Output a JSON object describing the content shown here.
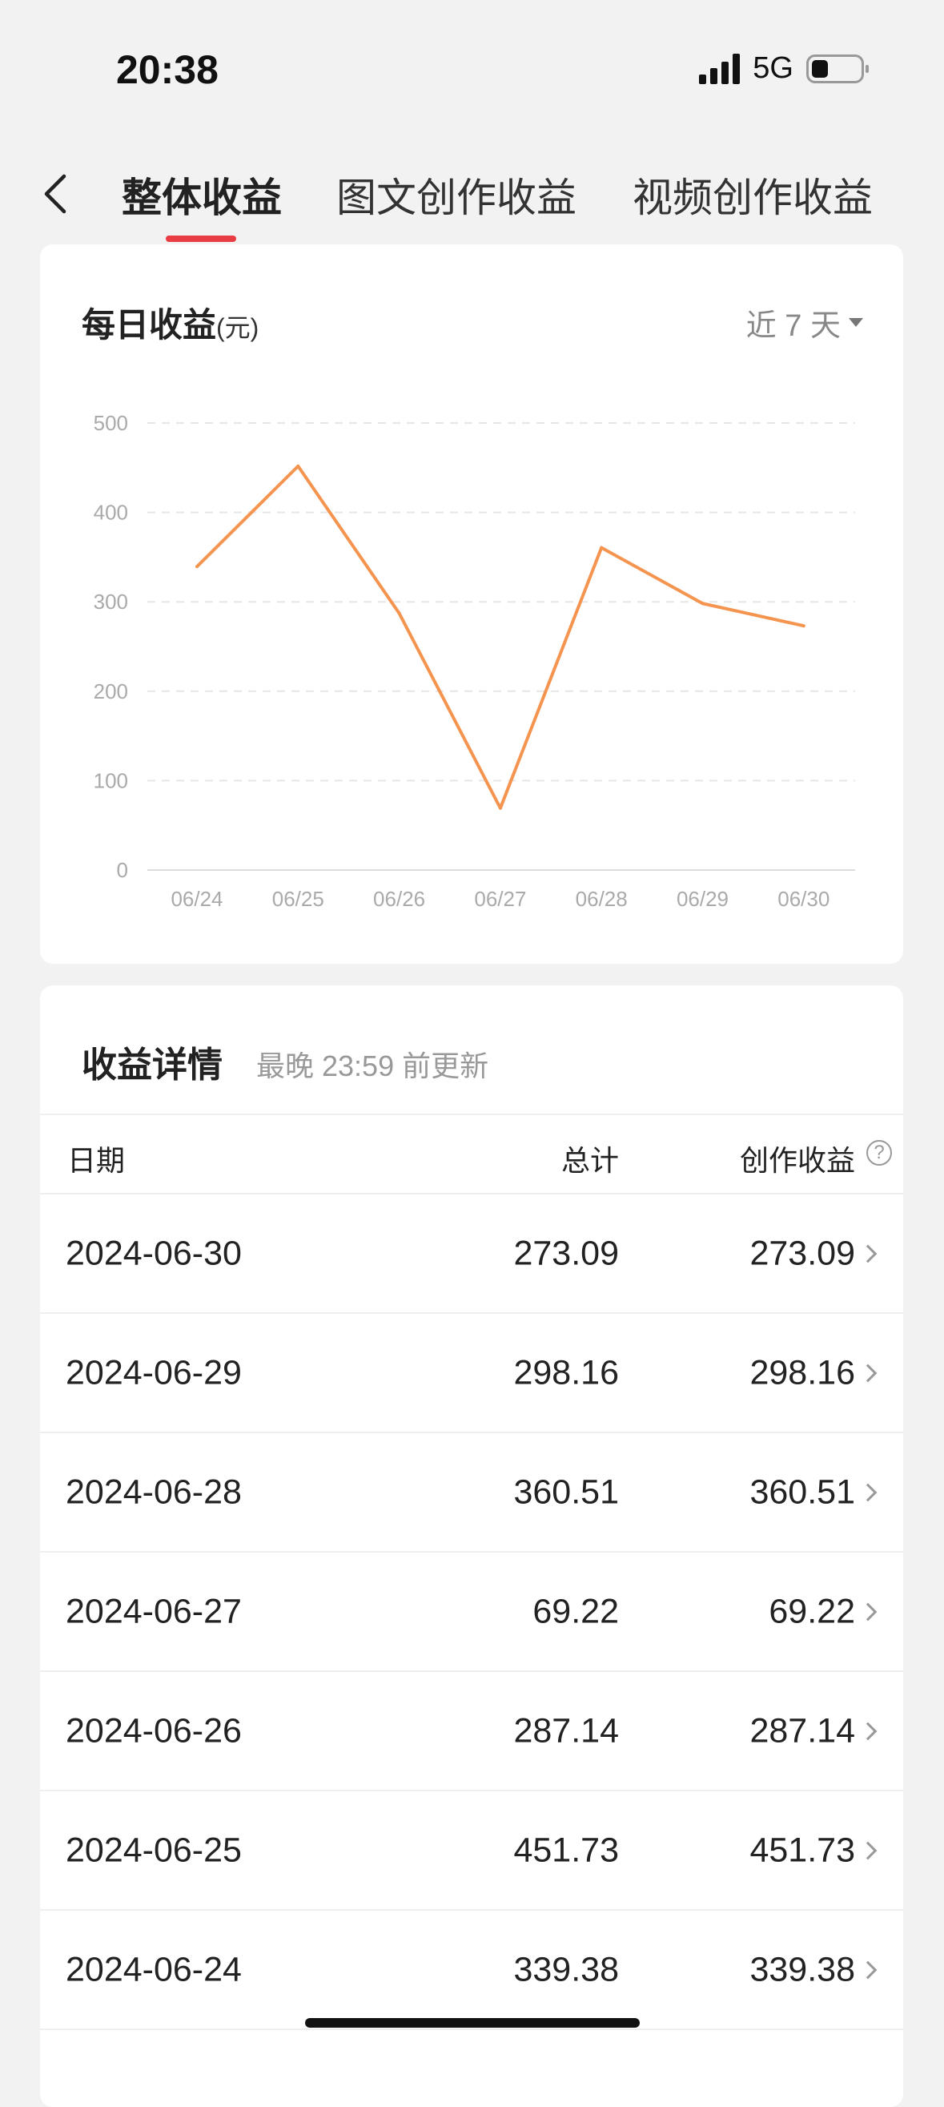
{
  "status_bar": {
    "time": "20:38",
    "network": "5G",
    "battery_level": 0.25
  },
  "tabs": [
    {
      "label": "整体收益",
      "active": true
    },
    {
      "label": "图文创作收益",
      "active": false
    },
    {
      "label": "视频创作收益",
      "active": false
    }
  ],
  "daily_card": {
    "title": "每日收益",
    "unit": "(元)",
    "range_label": "近 7 天"
  },
  "chart_data": {
    "type": "line",
    "categories": [
      "06/24",
      "06/25",
      "06/26",
      "06/27",
      "06/28",
      "06/29",
      "06/30"
    ],
    "values": [
      339.38,
      451.73,
      287.14,
      69.22,
      360.51,
      298.16,
      273.09
    ],
    "yticks": [
      "0",
      "100",
      "200",
      "300",
      "400",
      "500"
    ],
    "ylim": [
      0,
      500
    ],
    "grid": true,
    "line_color": "#f5944f"
  },
  "detail_card": {
    "title": "收益详情",
    "subtitle": "最晚 23:59 前更新",
    "columns": {
      "date": "日期",
      "total": "总计",
      "creation": "创作收益"
    },
    "help_icon": "?",
    "rows": [
      {
        "date": "2024-06-30",
        "total": "273.09",
        "creation": "273.09"
      },
      {
        "date": "2024-06-29",
        "total": "298.16",
        "creation": "298.16"
      },
      {
        "date": "2024-06-28",
        "total": "360.51",
        "creation": "360.51"
      },
      {
        "date": "2024-06-27",
        "total": "69.22",
        "creation": "69.22"
      },
      {
        "date": "2024-06-26",
        "total": "287.14",
        "creation": "287.14"
      },
      {
        "date": "2024-06-25",
        "total": "451.73",
        "creation": "451.73"
      },
      {
        "date": "2024-06-24",
        "total": "339.38",
        "creation": "339.38"
      }
    ]
  }
}
